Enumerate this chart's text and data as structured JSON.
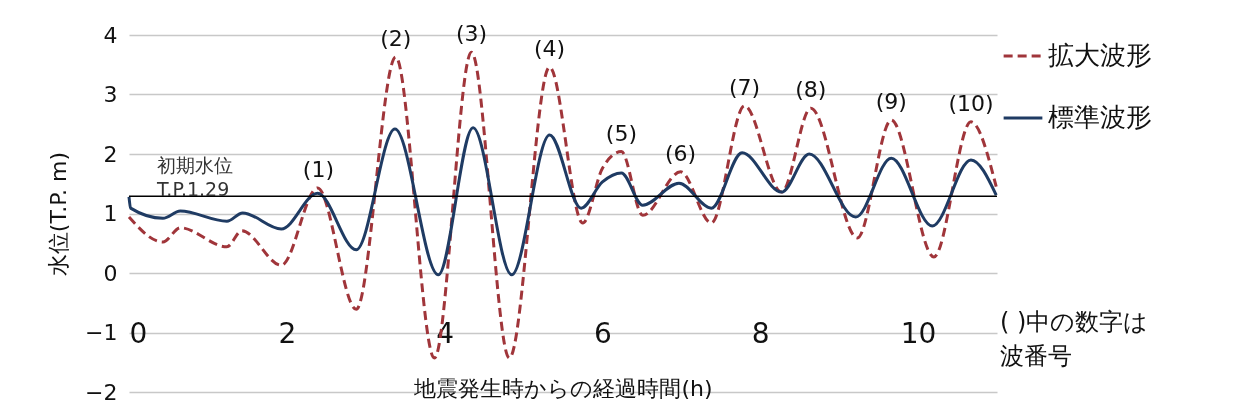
{
  "chart_data": {
    "type": "line",
    "ylabel": "水位(T.P. m)",
    "xlabel": "地震発生時からの経過時間(h)",
    "xlim": [
      0,
      11
    ],
    "xticks": [
      0,
      2,
      4,
      6,
      8,
      10
    ],
    "ylim": [
      -2,
      4
    ],
    "yticks": [
      -2,
      -1,
      0,
      1,
      2,
      3,
      4
    ],
    "grid": "y",
    "legend": "right",
    "series": [
      {
        "name": "拡大波形",
        "color": "#a0353a",
        "line_style": "dashed",
        "x": [
          0,
          0.43,
          0.65,
          1.24,
          1.43,
          1.93,
          2.39,
          2.88,
          3.38,
          3.87,
          4.34,
          4.82,
          5.33,
          5.75,
          6.0,
          6.24,
          6.51,
          6.99,
          7.38,
          7.8,
          8.27,
          8.64,
          9.23,
          9.66,
          10.2,
          10.67,
          10.99
        ],
        "values": [
          0.94,
          0.52,
          0.76,
          0.44,
          0.71,
          0.13,
          1.43,
          -0.61,
          3.63,
          -1.43,
          3.71,
          -1.43,
          3.46,
          0.84,
          1.76,
          2.04,
          0.97,
          1.7,
          0.84,
          2.81,
          1.36,
          2.77,
          0.59,
          2.57,
          0.27,
          2.54,
          1.45
        ]
      },
      {
        "name": "標準波形",
        "color": "#1f3b63",
        "line_style": "solid",
        "x": [
          0,
          0.02,
          0.43,
          0.65,
          1.24,
          1.44,
          1.93,
          2.39,
          2.88,
          3.37,
          3.92,
          4.36,
          4.85,
          5.33,
          5.73,
          6.0,
          6.24,
          6.51,
          6.97,
          7.38,
          7.77,
          8.27,
          8.62,
          9.21,
          9.66,
          10.18,
          10.67,
          10.99
        ],
        "values": [
          1.28,
          1.09,
          0.92,
          1.04,
          0.87,
          1.01,
          0.74,
          1.34,
          0.39,
          2.42,
          -0.03,
          2.44,
          -0.03,
          2.32,
          1.09,
          1.53,
          1.68,
          1.14,
          1.51,
          1.09,
          2.02,
          1.36,
          2.0,
          0.94,
          1.93,
          0.79,
          1.9,
          1.31
        ]
      }
    ],
    "ref_lines": [
      {
        "axis": "y",
        "value": 1.29,
        "label": "初期水位\nT.P.1.29",
        "color": "#000000"
      }
    ],
    "annotations": [
      {
        "text": "(1)",
        "x": 2.4,
        "y": 1.43
      },
      {
        "text": "(2)",
        "x": 3.38,
        "y": 3.63
      },
      {
        "text": "(3)",
        "x": 4.34,
        "y": 3.71
      },
      {
        "text": "(4)",
        "x": 5.33,
        "y": 3.46
      },
      {
        "text": "(5)",
        "x": 6.24,
        "y": 2.04
      },
      {
        "text": "(6)",
        "x": 6.99,
        "y": 1.7
      },
      {
        "text": "(7)",
        "x": 7.8,
        "y": 2.81
      },
      {
        "text": "(8)",
        "x": 8.64,
        "y": 2.77
      },
      {
        "text": "(9)",
        "x": 9.66,
        "y": 2.57
      },
      {
        "text": "(10)",
        "x": 10.67,
        "y": 2.54
      },
      "( )中の数字は波番号"
    ]
  }
}
